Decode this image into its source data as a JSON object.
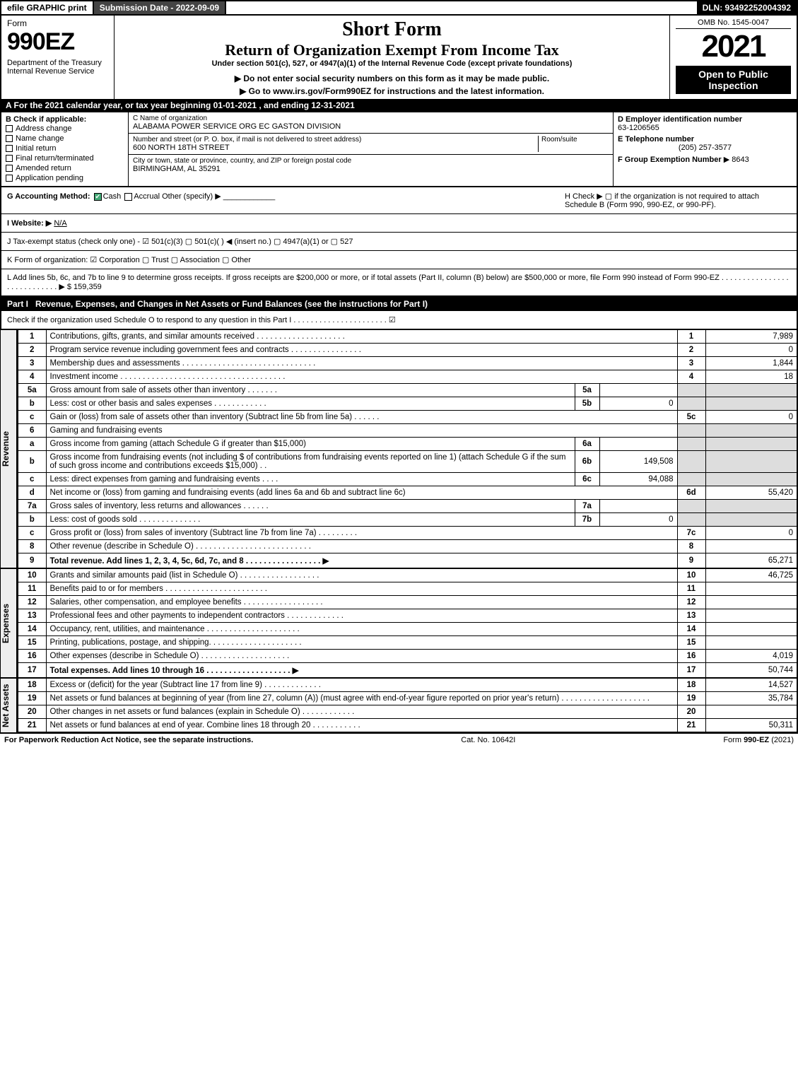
{
  "topbar": {
    "efile": "efile GRAPHIC print",
    "submission": "Submission Date - 2022-09-09",
    "dln": "DLN: 93492252004392"
  },
  "header": {
    "form_label": "Form",
    "form_no": "990EZ",
    "dept": "Department of the Treasury\nInternal Revenue Service",
    "short_form": "Short Form",
    "title": "Return of Organization Exempt From Income Tax",
    "under": "Under section 501(c), 527, or 4947(a)(1) of the Internal Revenue Code (except private foundations)",
    "warn1": "▶ Do not enter social security numbers on this form as it may be made public.",
    "warn2": "▶ Go to www.irs.gov/Form990EZ for instructions and the latest information.",
    "omb": "OMB No. 1545-0047",
    "year": "2021",
    "open": "Open to Public Inspection"
  },
  "lineA": "A  For the 2021 calendar year, or tax year beginning 01-01-2021 , and ending 12-31-2021",
  "B": {
    "label": "B  Check if applicable:",
    "opts": [
      "Address change",
      "Name change",
      "Initial return",
      "Final return/terminated",
      "Amended return",
      "Application pending"
    ]
  },
  "C": {
    "name_label": "C Name of organization",
    "name": "ALABAMA POWER SERVICE ORG EC GASTON DIVISION",
    "street_label": "Number and street (or P. O. box, if mail is not delivered to street address)",
    "room_label": "Room/suite",
    "street": "600 NORTH 18TH STREET",
    "city_label": "City or town, state or province, country, and ZIP or foreign postal code",
    "city": "BIRMINGHAM, AL  35291"
  },
  "D": {
    "label": "D Employer identification number",
    "value": "63-1206565"
  },
  "E": {
    "label": "E Telephone number",
    "value": "(205) 257-3577"
  },
  "F": {
    "label": "F Group Exemption Number",
    "value": "▶ 8643"
  },
  "G": {
    "label": "G Accounting Method:",
    "cash": "Cash",
    "accrual": "Accrual",
    "other": "Other (specify) ▶"
  },
  "H": "H    Check ▶  ▢  if the organization is not required to attach Schedule B (Form 990, 990-EZ, or 990-PF).",
  "I": {
    "label": "I Website: ▶",
    "value": "N/A"
  },
  "J": "J Tax-exempt status (check only one) -  ☑ 501(c)(3)  ▢ 501(c)(  ) ◀ (insert no.)  ▢ 4947(a)(1) or  ▢ 527",
  "K": "K Form of organization:   ☑ Corporation   ▢ Trust   ▢ Association   ▢ Other",
  "L": "L Add lines 5b, 6c, and 7b to line 9 to determine gross receipts. If gross receipts are $200,000 or more, or if total assets (Part II, column (B) below) are $500,000 or more, file Form 990 instead of Form 990-EZ  .  .  .  .  .  .  .  .  .  .  .  .  .  .  .  .  .  .  .  .  .  .  .  .  .  .  .  .  ▶ $ 159,359",
  "part1": {
    "label": "Part I",
    "title": "Revenue, Expenses, and Changes in Net Assets or Fund Balances (see the instructions for Part I)",
    "check": "Check if the organization used Schedule O to respond to any question in this Part I  .  .  .  .  .  .  .  .  .  .  .  .  .  .  .  .  .  .  .  .  .  .   ☑"
  },
  "sections": {
    "revenue": "Revenue",
    "expenses": "Expenses",
    "netassets": "Net Assets"
  },
  "lines": [
    {
      "n": "1",
      "desc": "Contributions, gifts, grants, and similar amounts received  .  .  .  .  .  .  .  .  .  .  .  .  .  .  .  .  .  .  .  .",
      "ln": "1",
      "amt": "7,989"
    },
    {
      "n": "2",
      "desc": "Program service revenue including government fees and contracts  .  .  .  .  .  .  .  .  .  .  .  .  .  .  .  .",
      "ln": "2",
      "amt": "0"
    },
    {
      "n": "3",
      "desc": "Membership dues and assessments  .  .  .  .  .  .  .  .  .  .  .  .  .  .  .  .  .  .  .  .  .  .  .  .  .  .  .  .  .  .",
      "ln": "3",
      "amt": "1,844"
    },
    {
      "n": "4",
      "desc": "Investment income  .  .  .  .  .  .  .  .  .  .  .  .  .  .  .  .  .  .  .  .  .  .  .  .  .  .  .  .  .  .  .  .  .  .  .  .  .",
      "ln": "4",
      "amt": "18"
    },
    {
      "n": "5a",
      "desc": "Gross amount from sale of assets other than inventory  .  .  .  .  .  .  .",
      "sub": "5a",
      "subval": "",
      "shade_amt": true
    },
    {
      "n": "b",
      "desc": "Less: cost or other basis and sales expenses  .  .  .  .  .  .  .  .  .  .  .  .",
      "sub": "5b",
      "subval": "0",
      "shade_amt": true
    },
    {
      "n": "c",
      "desc": "Gain or (loss) from sale of assets other than inventory (Subtract line 5b from line 5a)  .  .  .  .  .  .",
      "ln": "5c",
      "amt": "0"
    },
    {
      "n": "6",
      "desc": "Gaming and fundraising events",
      "shade_amt": true,
      "no_ln": true
    },
    {
      "n": "a",
      "desc": "Gross income from gaming (attach Schedule G if greater than $15,000)",
      "sub": "6a",
      "subval": "",
      "shade_amt": true
    },
    {
      "n": "b",
      "desc": "Gross income from fundraising events (not including $                        of contributions from fundraising events reported on line 1) (attach Schedule G if the sum of such gross income and contributions exceeds $15,000)    .   .",
      "sub": "6b",
      "subval": "149,508",
      "shade_amt": true
    },
    {
      "n": "c",
      "desc": "Less: direct expenses from gaming and fundraising events    .   .   .   .",
      "sub": "6c",
      "subval": "94,088",
      "shade_amt": true
    },
    {
      "n": "d",
      "desc": "Net income or (loss) from gaming and fundraising events (add lines 6a and 6b and subtract line 6c)",
      "ln": "6d",
      "amt": "55,420"
    },
    {
      "n": "7a",
      "desc": "Gross sales of inventory, less returns and allowances  .  .  .  .  .  .",
      "sub": "7a",
      "subval": "",
      "shade_amt": true
    },
    {
      "n": "b",
      "desc": "Less: cost of goods sold       .   .   .   .   .   .   .   .   .   .   .   .   .   .",
      "sub": "7b",
      "subval": "0",
      "shade_amt": true
    },
    {
      "n": "c",
      "desc": "Gross profit or (loss) from sales of inventory (Subtract line 7b from line 7a)  .  .  .  .  .  .  .  .  .",
      "ln": "7c",
      "amt": "0"
    },
    {
      "n": "8",
      "desc": "Other revenue (describe in Schedule O)  .  .  .  .  .  .  .  .  .  .  .  .  .  .  .  .  .  .  .  .  .  .  .  .  .  .",
      "ln": "8",
      "amt": ""
    },
    {
      "n": "9",
      "desc": "Total revenue. Add lines 1, 2, 3, 4, 5c, 6d, 7c, and 8   .   .   .   .   .   .   .   .   .   .   .   .   .   .   .   .   .   ▶",
      "ln": "9",
      "amt": "65,271",
      "bold": true
    }
  ],
  "exp_lines": [
    {
      "n": "10",
      "desc": "Grants and similar amounts paid (list in Schedule O)  .   .   .   .   .   .   .   .   .   .   .   .   .   .   .   .   .   .",
      "ln": "10",
      "amt": "46,725"
    },
    {
      "n": "11",
      "desc": "Benefits paid to or for members       .   .   .   .   .   .   .   .   .   .   .   .   .   .   .   .   .   .   .   .   .   .   .",
      "ln": "11",
      "amt": ""
    },
    {
      "n": "12",
      "desc": "Salaries, other compensation, and employee benefits .   .   .   .   .   .   .   .   .   .   .   .   .   .   .   .   .   .",
      "ln": "12",
      "amt": ""
    },
    {
      "n": "13",
      "desc": "Professional fees and other payments to independent contractors  .   .   .   .   .   .   .   .   .   .   .   .   .",
      "ln": "13",
      "amt": ""
    },
    {
      "n": "14",
      "desc": "Occupancy, rent, utilities, and maintenance .   .   .   .   .   .   .   .   .   .   .   .   .   .   .   .   .   .   .   .   .",
      "ln": "14",
      "amt": ""
    },
    {
      "n": "15",
      "desc": "Printing, publications, postage, and shipping.   .   .   .   .   .   .   .   .   .   .   .   .   .   .   .   .   .   .   .   .",
      "ln": "15",
      "amt": ""
    },
    {
      "n": "16",
      "desc": "Other expenses (describe in Schedule O)     .   .   .   .   .   .   .   .   .   .   .   .   .   .   .   .   .   .   .   .",
      "ln": "16",
      "amt": "4,019"
    },
    {
      "n": "17",
      "desc": "Total expenses. Add lines 10 through 16      .   .   .   .   .   .   .   .   .   .   .   .   .   .   .   .   .   .   .   ▶",
      "ln": "17",
      "amt": "50,744",
      "bold": true
    }
  ],
  "na_lines": [
    {
      "n": "18",
      "desc": "Excess or (deficit) for the year (Subtract line 17 from line 9)        .   .   .   .   .   .   .   .   .   .   .   .   .",
      "ln": "18",
      "amt": "14,527"
    },
    {
      "n": "19",
      "desc": "Net assets or fund balances at beginning of year (from line 27, column (A)) (must agree with end-of-year figure reported on prior year's return) .   .   .   .   .   .   .   .   .   .   .   .   .   .   .   .   .   .   .   .",
      "ln": "19",
      "amt": "35,784"
    },
    {
      "n": "20",
      "desc": "Other changes in net assets or fund balances (explain in Schedule O) .   .   .   .   .   .   .   .   .   .   .   .",
      "ln": "20",
      "amt": ""
    },
    {
      "n": "21",
      "desc": "Net assets or fund balances at end of year. Combine lines 18 through 20 .   .   .   .   .   .   .   .   .   .   .",
      "ln": "21",
      "amt": "50,311"
    }
  ],
  "footer": {
    "left": "For Paperwork Reduction Act Notice, see the separate instructions.",
    "mid": "Cat. No. 10642I",
    "right": "Form 990-EZ (2021)"
  },
  "colors": {
    "black": "#000000",
    "white": "#ffffff",
    "darkbar": "#444444",
    "shade": "#dddddd",
    "link": "#0000ee"
  }
}
